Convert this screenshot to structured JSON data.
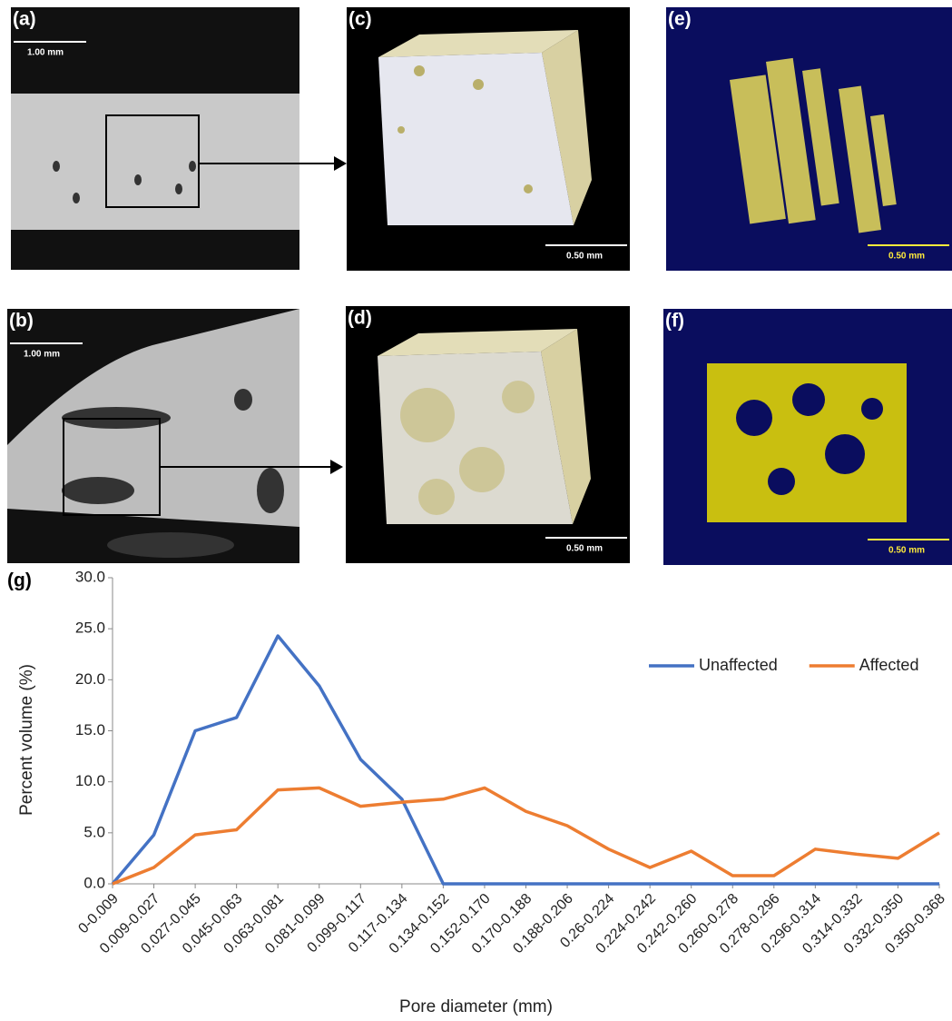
{
  "panels": [
    {
      "label": "(a)",
      "scale": "1.00 mm"
    },
    {
      "label": "(c)",
      "scale": "0.50 mm"
    },
    {
      "label": "(e)",
      "scale": "0.50 mm"
    },
    {
      "label": "(b)",
      "scale": "1.00 mm"
    },
    {
      "label": "(d)",
      "scale": "0.50 mm"
    },
    {
      "label": "(f)",
      "scale": "0.50 mm"
    }
  ],
  "chart_data": {
    "type": "line",
    "panel_label": "(g)",
    "x_label": "Pore diameter (mm)",
    "y_label": "Percent volume (%)",
    "categories": [
      "0-0.009",
      "0.009-0.027",
      "0.027-0.045",
      "0.045-0.063",
      "0.063-0.081",
      "0.081-0.099",
      "0.099-0.117",
      "0.117-0.134",
      "0.134-0.152",
      "0.152-0.170",
      "0.170-0.188",
      "0.188-0.206",
      "0.26-0.224",
      "0.224-0.242",
      "0.242-0.260",
      "0.260-0.278",
      "0.278-0.296",
      "0.296-0.314",
      "0.314-0.332",
      "0.332-0.350",
      "0.350-0.368"
    ],
    "series": [
      {
        "name": "Unaffected",
        "color": "#4472c4",
        "values": [
          0,
          4.8,
          15.0,
          16.3,
          24.3,
          19.4,
          12.2,
          8.3,
          0,
          0,
          0,
          0,
          0,
          0,
          0,
          0,
          0,
          0,
          0,
          0,
          0
        ]
      },
      {
        "name": "Affected",
        "color": "#ed7d31",
        "values": [
          0,
          1.6,
          4.8,
          5.3,
          9.2,
          9.4,
          7.6,
          8.0,
          8.3,
          9.4,
          7.1,
          5.7,
          3.4,
          1.6,
          3.2,
          0.8,
          0.8,
          3.4,
          2.9,
          2.5,
          5.0
        ]
      }
    ],
    "ylim": [
      0,
      30
    ],
    "yticks": [
      {
        "value": 0,
        "label": "0.0"
      },
      {
        "value": 5,
        "label": "5.0"
      },
      {
        "value": 10,
        "label": "10.0"
      },
      {
        "value": 15,
        "label": "15.0"
      },
      {
        "value": 20,
        "label": "20.0"
      },
      {
        "value": 25,
        "label": "25.0"
      },
      {
        "value": 30,
        "label": "30.0"
      }
    ],
    "grid": false,
    "legend": "right"
  }
}
